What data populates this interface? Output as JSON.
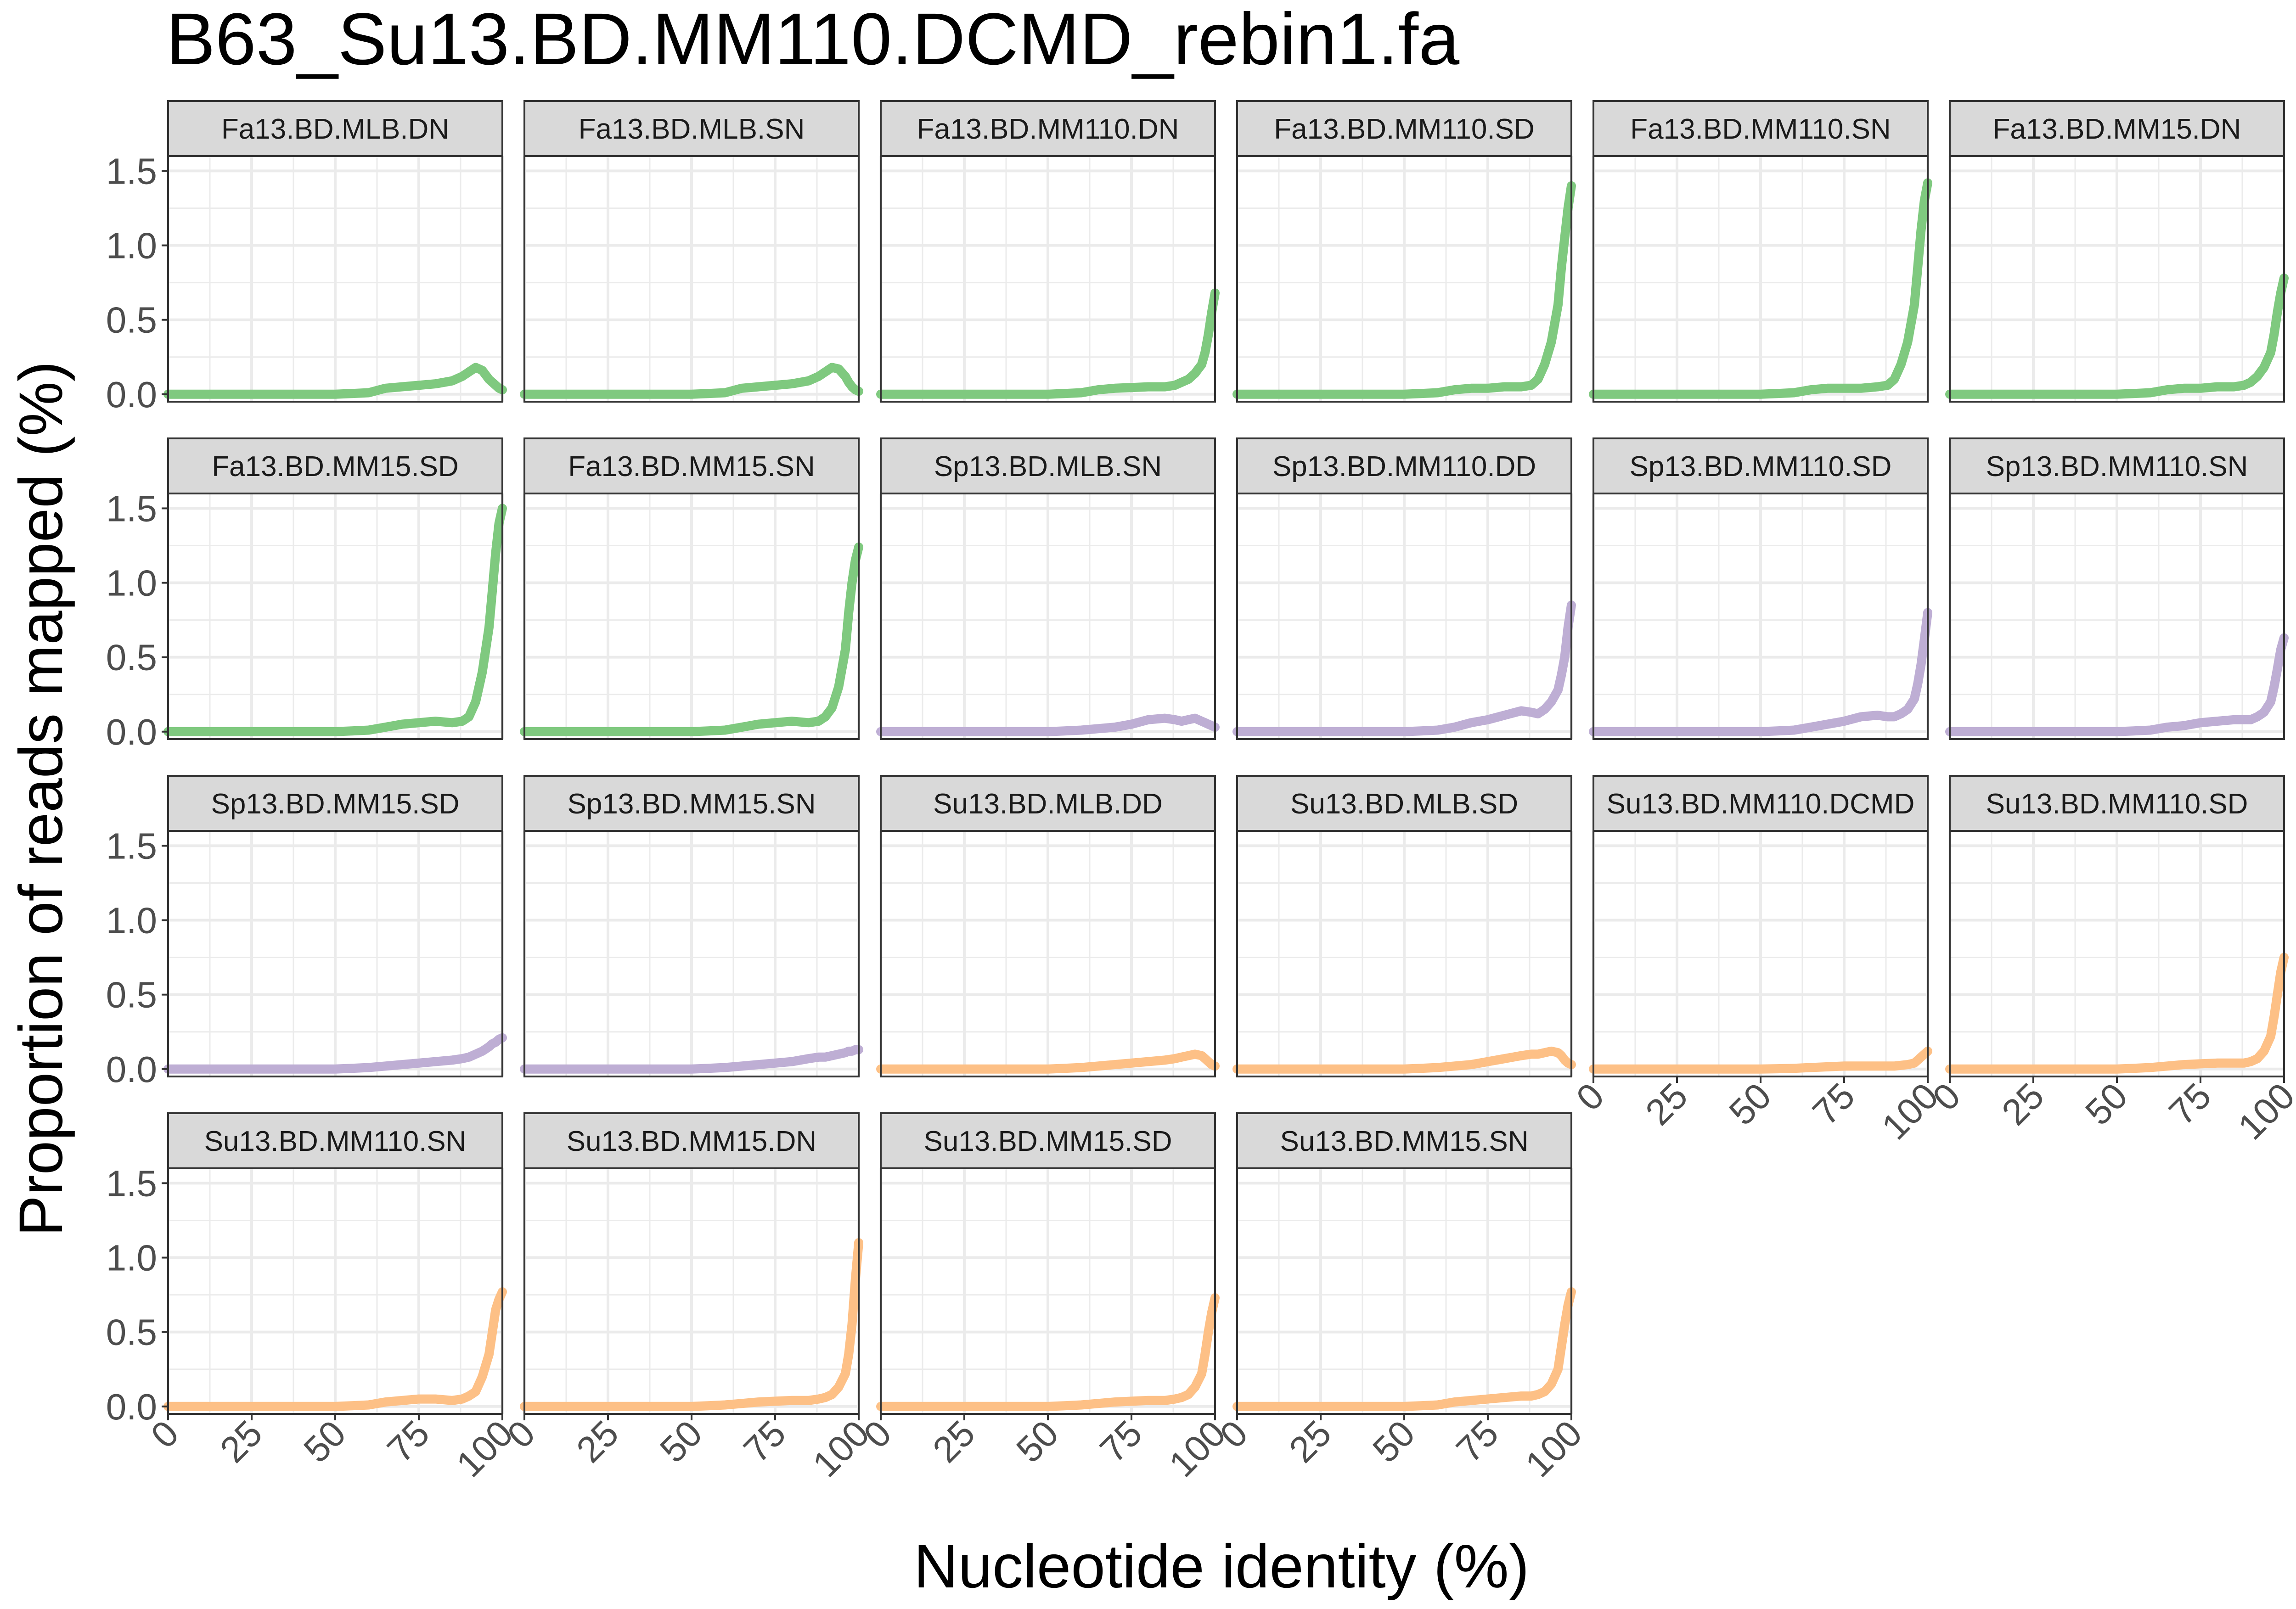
{
  "chart_data": {
    "type": "line",
    "title": "B63_Su13.BD.MM110.DCMD_rebin1.fa",
    "xlabel": "Nucleotide identity (%)",
    "ylabel": "Proportion of reads mapped (%)",
    "xlim": [
      0,
      100
    ],
    "ylim": [
      -0.05,
      1.6
    ],
    "xticks": [
      "0",
      "25",
      "50",
      "75",
      "100"
    ],
    "yticks": [
      "0.0",
      "0.5",
      "1.0",
      "1.5"
    ],
    "grid": true,
    "facet_layout": "6 columns x 4 rows",
    "colors": {
      "Fa": "#7fc97f",
      "Sp": "#beaed4",
      "Su": "#fdc086",
      "strip_fill": "#d9d9d9",
      "grid": "#ebebeb"
    },
    "x": [
      0,
      10,
      20,
      30,
      40,
      50,
      55,
      60,
      65,
      70,
      75,
      80,
      85,
      88,
      90,
      92,
      94,
      96,
      97,
      98,
      99,
      100
    ],
    "series": [
      {
        "name": "Fa13.BD.MLB.DN",
        "group": "Fa",
        "values": [
          0,
          0,
          0,
          0,
          0,
          0,
          0.005,
          0.01,
          0.04,
          0.05,
          0.06,
          0.07,
          0.09,
          0.12,
          0.15,
          0.18,
          0.16,
          0.1,
          0.08,
          0.06,
          0.04,
          0.03
        ]
      },
      {
        "name": "Fa13.BD.MLB.SN",
        "group": "Fa",
        "values": [
          0,
          0,
          0,
          0,
          0,
          0,
          0.005,
          0.01,
          0.04,
          0.05,
          0.06,
          0.07,
          0.09,
          0.12,
          0.15,
          0.18,
          0.17,
          0.12,
          0.08,
          0.05,
          0.03,
          0.02
        ]
      },
      {
        "name": "Fa13.BD.MM110.DN",
        "group": "Fa",
        "values": [
          0,
          0,
          0,
          0,
          0,
          0,
          0.005,
          0.01,
          0.03,
          0.04,
          0.045,
          0.05,
          0.05,
          0.06,
          0.08,
          0.1,
          0.14,
          0.2,
          0.28,
          0.4,
          0.55,
          0.68
        ]
      },
      {
        "name": "Fa13.BD.MM110.SD",
        "group": "Fa",
        "values": [
          0,
          0,
          0,
          0,
          0,
          0,
          0.005,
          0.01,
          0.03,
          0.04,
          0.04,
          0.05,
          0.05,
          0.06,
          0.1,
          0.2,
          0.35,
          0.6,
          0.85,
          1.05,
          1.25,
          1.4
        ]
      },
      {
        "name": "Fa13.BD.MM110.SN",
        "group": "Fa",
        "values": [
          0,
          0,
          0,
          0,
          0,
          0,
          0.005,
          0.01,
          0.03,
          0.04,
          0.04,
          0.04,
          0.05,
          0.06,
          0.1,
          0.2,
          0.35,
          0.6,
          0.85,
          1.1,
          1.3,
          1.42
        ]
      },
      {
        "name": "Fa13.BD.MM15.DN",
        "group": "Fa",
        "values": [
          0,
          0,
          0,
          0,
          0,
          0,
          0.005,
          0.01,
          0.03,
          0.04,
          0.04,
          0.05,
          0.05,
          0.06,
          0.08,
          0.12,
          0.18,
          0.28,
          0.4,
          0.55,
          0.68,
          0.78
        ]
      },
      {
        "name": "Fa13.BD.MM15.SD",
        "group": "Fa",
        "values": [
          0,
          0,
          0,
          0,
          0,
          0,
          0.005,
          0.01,
          0.03,
          0.05,
          0.06,
          0.07,
          0.06,
          0.07,
          0.1,
          0.2,
          0.4,
          0.7,
          0.95,
          1.2,
          1.4,
          1.5
        ]
      },
      {
        "name": "Fa13.BD.MM15.SN",
        "group": "Fa",
        "values": [
          0,
          0,
          0,
          0,
          0,
          0,
          0.005,
          0.01,
          0.03,
          0.05,
          0.06,
          0.07,
          0.06,
          0.07,
          0.1,
          0.16,
          0.3,
          0.55,
          0.8,
          1.0,
          1.15,
          1.24
        ]
      },
      {
        "name": "Sp13.BD.MLB.SN",
        "group": "Sp",
        "values": [
          0,
          0,
          0,
          0,
          0,
          0,
          0.005,
          0.01,
          0.02,
          0.03,
          0.05,
          0.08,
          0.09,
          0.08,
          0.07,
          0.08,
          0.09,
          0.07,
          0.06,
          0.05,
          0.04,
          0.03
        ]
      },
      {
        "name": "Sp13.BD.MM110.DD",
        "group": "Sp",
        "values": [
          0,
          0,
          0,
          0,
          0,
          0,
          0.005,
          0.01,
          0.03,
          0.06,
          0.08,
          0.11,
          0.14,
          0.13,
          0.12,
          0.15,
          0.2,
          0.28,
          0.38,
          0.5,
          0.7,
          0.85
        ]
      },
      {
        "name": "Sp13.BD.MM110.SD",
        "group": "Sp",
        "values": [
          0,
          0,
          0,
          0,
          0,
          0,
          0.005,
          0.01,
          0.03,
          0.05,
          0.07,
          0.1,
          0.11,
          0.1,
          0.1,
          0.12,
          0.15,
          0.22,
          0.32,
          0.45,
          0.62,
          0.8
        ]
      },
      {
        "name": "Sp13.BD.MM110.SN",
        "group": "Sp",
        "values": [
          0,
          0,
          0,
          0,
          0,
          0,
          0.005,
          0.01,
          0.03,
          0.04,
          0.06,
          0.07,
          0.08,
          0.08,
          0.08,
          0.1,
          0.13,
          0.2,
          0.3,
          0.42,
          0.55,
          0.63
        ]
      },
      {
        "name": "Sp13.BD.MM15.SD",
        "group": "Sp",
        "values": [
          0,
          0,
          0,
          0,
          0,
          0,
          0.005,
          0.01,
          0.02,
          0.03,
          0.04,
          0.05,
          0.06,
          0.07,
          0.08,
          0.1,
          0.12,
          0.15,
          0.17,
          0.18,
          0.2,
          0.21
        ]
      },
      {
        "name": "Sp13.BD.MM15.SN",
        "group": "Sp",
        "values": [
          0,
          0,
          0,
          0,
          0,
          0,
          0.005,
          0.01,
          0.02,
          0.03,
          0.04,
          0.05,
          0.07,
          0.08,
          0.08,
          0.09,
          0.1,
          0.11,
          0.12,
          0.12,
          0.13,
          0.13
        ]
      },
      {
        "name": "Su13.BD.MLB.DD",
        "group": "Su",
        "values": [
          0,
          0,
          0,
          0,
          0,
          0,
          0.005,
          0.01,
          0.02,
          0.03,
          0.04,
          0.05,
          0.06,
          0.07,
          0.08,
          0.09,
          0.1,
          0.09,
          0.07,
          0.05,
          0.03,
          0.02
        ]
      },
      {
        "name": "Su13.BD.MLB.SD",
        "group": "Su",
        "values": [
          0,
          0,
          0,
          0,
          0,
          0,
          0.005,
          0.01,
          0.02,
          0.03,
          0.05,
          0.07,
          0.09,
          0.1,
          0.1,
          0.11,
          0.12,
          0.11,
          0.09,
          0.06,
          0.04,
          0.03
        ]
      },
      {
        "name": "Su13.BD.MM110.DCMD",
        "group": "Su",
        "values": [
          0,
          0,
          0,
          0,
          0,
          0,
          0.002,
          0.005,
          0.01,
          0.015,
          0.02,
          0.02,
          0.02,
          0.02,
          0.02,
          0.025,
          0.03,
          0.04,
          0.06,
          0.08,
          0.1,
          0.12
        ]
      },
      {
        "name": "Su13.BD.MM110.SD",
        "group": "Su",
        "values": [
          0,
          0,
          0,
          0,
          0,
          0,
          0.005,
          0.01,
          0.02,
          0.03,
          0.035,
          0.04,
          0.04,
          0.04,
          0.05,
          0.07,
          0.12,
          0.22,
          0.35,
          0.5,
          0.65,
          0.75
        ]
      },
      {
        "name": "Su13.BD.MM110.SN",
        "group": "Su",
        "values": [
          0,
          0,
          0,
          0,
          0,
          0,
          0.005,
          0.01,
          0.03,
          0.04,
          0.05,
          0.05,
          0.04,
          0.05,
          0.07,
          0.1,
          0.2,
          0.35,
          0.5,
          0.65,
          0.72,
          0.77
        ]
      },
      {
        "name": "Su13.BD.MM15.DN",
        "group": "Su",
        "values": [
          0,
          0,
          0,
          0,
          0,
          0,
          0.005,
          0.01,
          0.02,
          0.03,
          0.035,
          0.04,
          0.04,
          0.05,
          0.06,
          0.08,
          0.13,
          0.22,
          0.35,
          0.55,
          0.85,
          1.1
        ]
      },
      {
        "name": "Su13.BD.MM15.SD",
        "group": "Su",
        "values": [
          0,
          0,
          0,
          0,
          0,
          0,
          0.005,
          0.01,
          0.02,
          0.03,
          0.035,
          0.04,
          0.04,
          0.05,
          0.06,
          0.08,
          0.13,
          0.22,
          0.35,
          0.5,
          0.63,
          0.73
        ]
      },
      {
        "name": "Su13.BD.MM15.SN",
        "group": "Su",
        "values": [
          0,
          0,
          0,
          0,
          0,
          0,
          0.005,
          0.01,
          0.03,
          0.04,
          0.05,
          0.06,
          0.07,
          0.07,
          0.08,
          0.1,
          0.15,
          0.25,
          0.4,
          0.55,
          0.68,
          0.77
        ]
      }
    ]
  }
}
